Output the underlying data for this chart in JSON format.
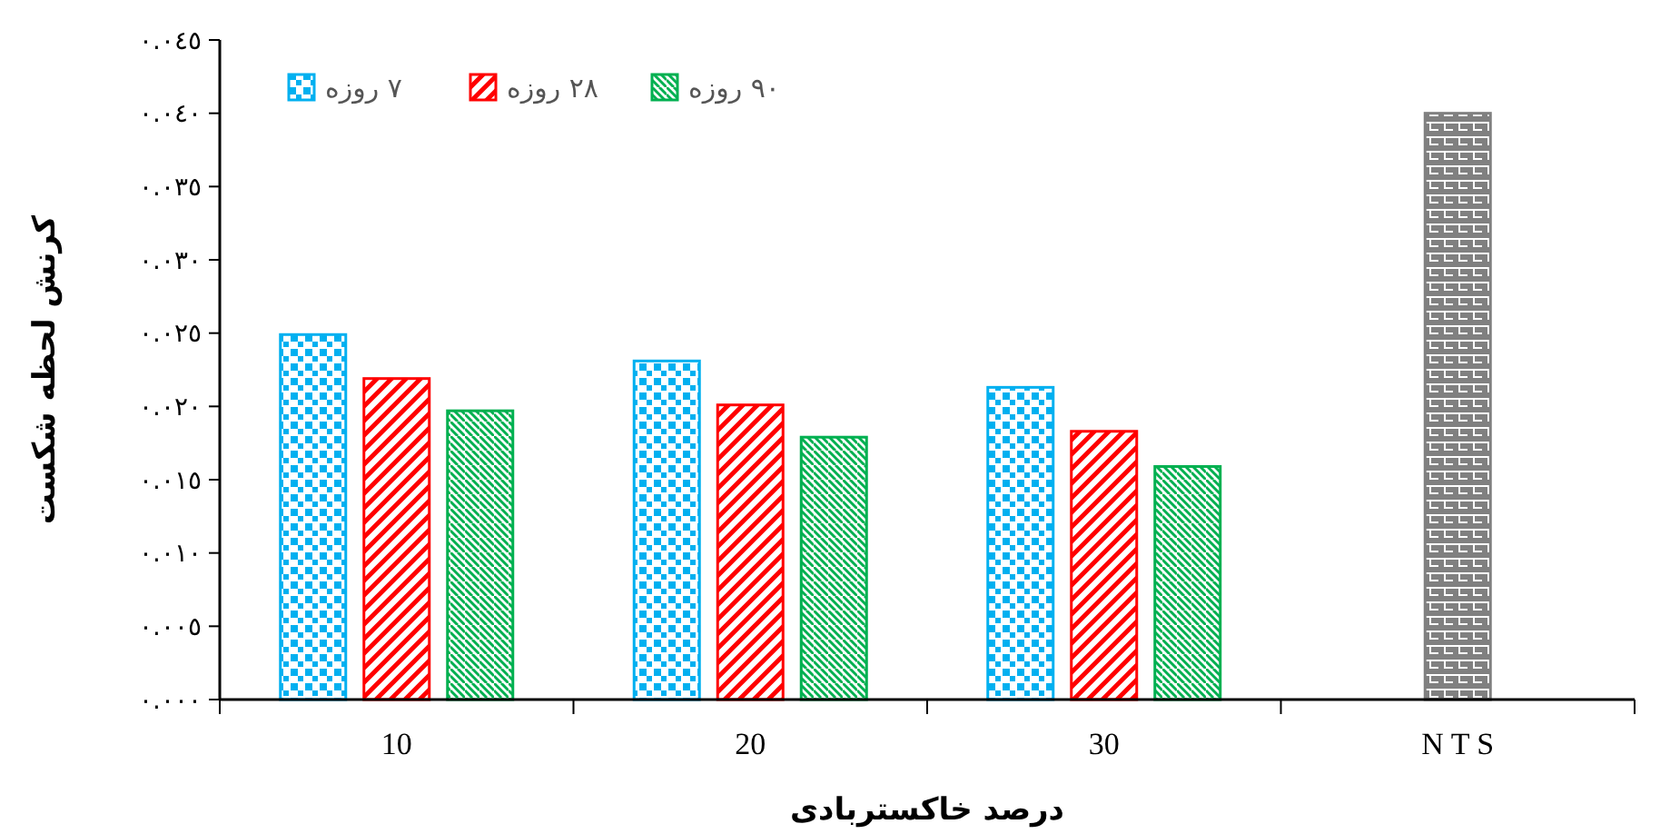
{
  "chart_data": {
    "type": "bar",
    "xlabel": "درصد خاکستربادی",
    "ylabel": "کرنش لحظه شکست",
    "categories": [
      "10",
      "20",
      "30",
      "N T S"
    ],
    "series": [
      {
        "name": "٧ روزه",
        "color": "#00b0f0",
        "values": [
          0.0249,
          0.0231,
          0.0213,
          null
        ]
      },
      {
        "name": "٢٨ روزه",
        "color": "#ff0000",
        "values": [
          0.0219,
          0.0201,
          0.0183,
          null
        ]
      },
      {
        "name": "٩٠ روزه",
        "color": "#00b050",
        "values": [
          0.0197,
          0.0179,
          0.0159,
          null
        ]
      },
      {
        "color": "#808080",
        "values": [
          null,
          null,
          null,
          0.04
        ]
      }
    ],
    "ylim": [
      0,
      0.045
    ],
    "yticks": [
      {
        "value": 0,
        "label": "٠.٠٠٠"
      },
      {
        "value": 0.005,
        "label": "٠.٠٠٥"
      },
      {
        "value": 0.01,
        "label": "٠.٠١٠"
      },
      {
        "value": 0.015,
        "label": "٠.٠١٥"
      },
      {
        "value": 0.02,
        "label": "٠.٠٢٠"
      },
      {
        "value": 0.025,
        "label": "٠.٠٢٥"
      },
      {
        "value": 0.03,
        "label": "٠.٠٣٠"
      },
      {
        "value": 0.035,
        "label": "٠.٠٣٥"
      },
      {
        "value": 0.04,
        "label": "٠.٠٤٠"
      },
      {
        "value": 0.045,
        "label": "٠.٠٤٥"
      }
    ],
    "legend": "top left",
    "grid": false
  }
}
